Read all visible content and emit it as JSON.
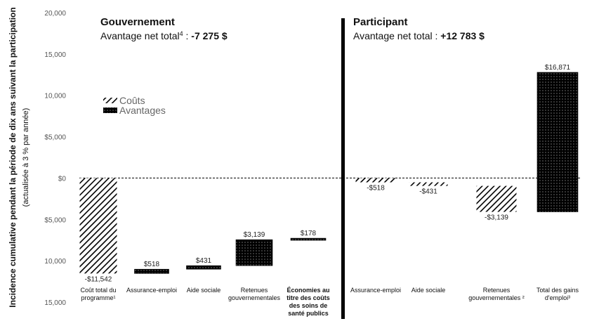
{
  "chart_data": {
    "type": "bar",
    "ylabel": "Incidence cumulative pendant la période de dix ans suivant la participation",
    "ylabel_sub": "(actualisée à 3 % par année)",
    "ylim": [
      -15000,
      20000
    ],
    "y_ticks": [
      {
        "value": 20000,
        "label": "20,000"
      },
      {
        "value": 15000,
        "label": "15,000"
      },
      {
        "value": 10000,
        "label": "10,000"
      },
      {
        "value": 5000,
        "label": "$5,000"
      },
      {
        "value": 0,
        "label": "$0"
      },
      {
        "value": -5000,
        "label": "$5,000"
      },
      {
        "value": -10000,
        "label": "10,000"
      },
      {
        "value": -15000,
        "label": "15,000"
      }
    ],
    "grid": false,
    "legend_position": "left",
    "legend": [
      {
        "key": "cost",
        "label": "Coûts"
      },
      {
        "key": "benefit",
        "label": "Avantages"
      }
    ],
    "panels": [
      {
        "title": "Gouvernement",
        "subtitle_text": "Avantage net total",
        "subtitle_sup": "4",
        "subtitle_sep": " : ",
        "subtitle_value": "-7 275 $",
        "bars": [
          {
            "category_lines": [
              "Coût total du",
              "programme¹"
            ],
            "bold": false,
            "type": "cost",
            "start": 0,
            "end": -11542,
            "label": "-$11,542"
          },
          {
            "category_lines": [
              "Assurance-emploi"
            ],
            "bold": false,
            "type": "benefit",
            "start": -11542,
            "end": -11024,
            "label": "$518"
          },
          {
            "category_lines": [
              "Aide sociale"
            ],
            "bold": false,
            "type": "benefit",
            "start": -11024,
            "end": -10593,
            "label": "$431"
          },
          {
            "category_lines": [
              "Retenues",
              "gouvernementales"
            ],
            "bold": false,
            "type": "benefit",
            "start": -10593,
            "end": -7454,
            "label": "$3,139"
          },
          {
            "category_lines": [
              "Économies au",
              "titre des coûts",
              "des soins de",
              "santé publics"
            ],
            "bold": true,
            "type": "benefit",
            "start": -7454,
            "end": -7276,
            "label": "$178"
          }
        ]
      },
      {
        "title": "Participant",
        "subtitle_text": "Avantage net total",
        "subtitle_sup": "",
        "subtitle_sep": " : ",
        "subtitle_value": "+12 783 $",
        "bars": [
          {
            "category_lines": [
              "Assurance-emploi"
            ],
            "bold": false,
            "type": "cost",
            "start": 0,
            "end": -518,
            "label": "-$518"
          },
          {
            "category_lines": [
              "Aide sociale"
            ],
            "bold": false,
            "type": "cost",
            "start": -518,
            "end": -949,
            "label": "-$431"
          },
          {
            "category_lines": [
              "Retenues",
              "gouvernementales ²"
            ],
            "bold": false,
            "type": "cost",
            "start": -949,
            "end": -4088,
            "label": "-$3,139"
          },
          {
            "category_lines": [
              "Total des gains",
              "d'emploi³"
            ],
            "bold": false,
            "type": "benefit",
            "start": -4088,
            "end": 12783,
            "label": "$16,871"
          }
        ]
      }
    ]
  }
}
